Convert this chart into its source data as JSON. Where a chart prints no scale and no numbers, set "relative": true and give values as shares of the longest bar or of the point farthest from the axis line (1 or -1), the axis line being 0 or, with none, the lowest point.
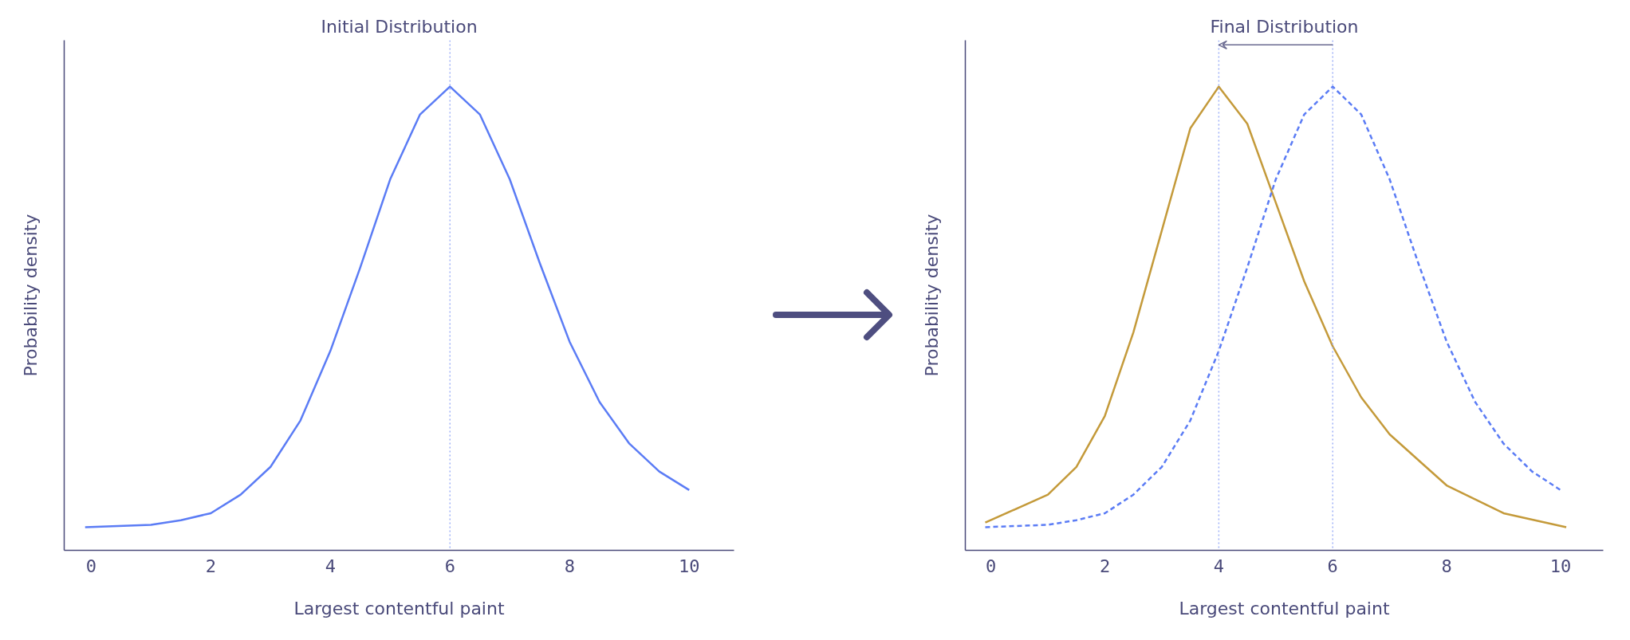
{
  "chart_data": [
    {
      "type": "line",
      "title": "Initial Distribution",
      "xlabel": "Largest contentful paint",
      "ylabel": "Probability density",
      "relative": true,
      "tick_labels": "x",
      "grid": false,
      "xlim": [
        -0.45,
        10.75
      ],
      "xticks": [
        0,
        2,
        4,
        6,
        8,
        10
      ],
      "series": [
        {
          "color": "#5b7cf5",
          "line_style": "solid",
          "x": [
            -0.1,
            1,
            1.5,
            2,
            2.5,
            3,
            3.5,
            4,
            4.5,
            5,
            5.5,
            6,
            6.5,
            7,
            7.5,
            8,
            8.5,
            9,
            9.5,
            10
          ],
          "values": [
            0.05,
            0.055,
            0.065,
            0.08,
            0.12,
            0.18,
            0.28,
            0.43,
            0.61,
            0.8,
            0.94,
            1,
            0.94,
            0.8,
            0.62,
            0.45,
            0.32,
            0.23,
            0.17,
            0.13
          ]
        }
      ],
      "ref_lines": [
        {
          "axis": "x",
          "value": 6,
          "label": null,
          "color": "#9fb1f7",
          "line_style": "dotted"
        }
      ]
    },
    {
      "type": "line",
      "title": "Final Distribution",
      "xlabel": "Largest contentful paint",
      "ylabel": "Probability density",
      "relative": true,
      "tick_labels": "x",
      "grid": false,
      "xlim": [
        -0.45,
        10.75
      ],
      "xticks": [
        0,
        2,
        4,
        6,
        8,
        10
      ],
      "series": [
        {
          "color": "#c49a3a",
          "line_style": "solid",
          "x": [
            -0.1,
            1,
            1.5,
            2,
            2.5,
            3,
            3.5,
            4,
            4.5,
            5,
            5.5,
            6,
            6.5,
            7,
            8,
            9,
            10.1
          ],
          "values": [
            0.06,
            0.12,
            0.18,
            0.29,
            0.47,
            0.69,
            0.91,
            1,
            0.92,
            0.75,
            0.58,
            0.44,
            0.33,
            0.25,
            0.14,
            0.08,
            0.05
          ]
        },
        {
          "color": "#5b7cf5",
          "line_style": "dashed",
          "x": [
            -0.1,
            1,
            1.5,
            2,
            2.5,
            3,
            3.5,
            4,
            4.5,
            5,
            5.5,
            6,
            6.5,
            7,
            7.5,
            8,
            8.5,
            9,
            9.5,
            10
          ],
          "values": [
            0.05,
            0.055,
            0.065,
            0.08,
            0.12,
            0.18,
            0.28,
            0.43,
            0.61,
            0.8,
            0.94,
            1,
            0.94,
            0.8,
            0.62,
            0.45,
            0.32,
            0.23,
            0.17,
            0.13
          ]
        }
      ],
      "ref_lines": [
        {
          "axis": "x",
          "value": 4,
          "label": null,
          "color": "#9fb1f7",
          "line_style": "dotted"
        },
        {
          "axis": "x",
          "value": 6,
          "label": null,
          "color": "#9fb1f7",
          "line_style": "dotted"
        }
      ]
    }
  ]
}
